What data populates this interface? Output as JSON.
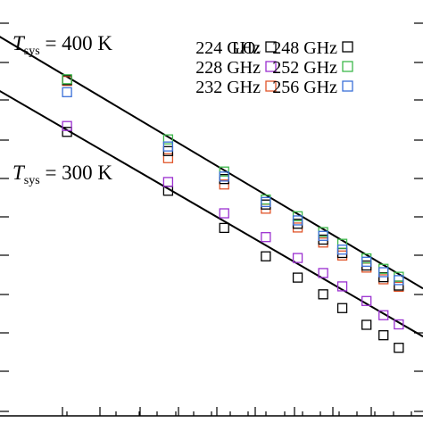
{
  "chart_data": {
    "type": "scatter",
    "title": "",
    "xlabel": "",
    "ylabel": "",
    "xlim": [
      0,
      10
    ],
    "ylim": [
      0,
      10
    ],
    "grid": false,
    "legend_placement": "top-right",
    "legend_prefix": "LO:",
    "series": [
      {
        "name": "224 GHz",
        "color": "#000000",
        "points": [
          [
            1.62,
            6.8
          ],
          [
            4.0,
            5.39
          ],
          [
            5.32,
            4.5
          ],
          [
            6.3,
            3.82
          ],
          [
            7.05,
            3.31
          ],
          [
            7.65,
            2.91
          ],
          [
            8.1,
            2.58
          ],
          [
            8.67,
            2.18
          ],
          [
            9.07,
            1.93
          ],
          [
            9.43,
            1.63
          ]
        ]
      },
      {
        "name": "228 GHz",
        "color": "#9b30d0",
        "points": [
          [
            1.62,
            6.94
          ],
          [
            4.0,
            5.6
          ],
          [
            5.32,
            4.85
          ],
          [
            6.3,
            4.28
          ],
          [
            7.05,
            3.78
          ],
          [
            7.65,
            3.42
          ],
          [
            8.1,
            3.1
          ],
          [
            8.67,
            2.75
          ],
          [
            9.07,
            2.41
          ],
          [
            9.43,
            2.19
          ]
        ]
      },
      {
        "name": "232 GHz",
        "color": "#e0552a",
        "points": [
          [
            1.62,
            8.02
          ],
          [
            4.0,
            6.17
          ],
          [
            5.32,
            5.54
          ],
          [
            6.3,
            4.96
          ],
          [
            7.05,
            4.51
          ],
          [
            7.65,
            4.15
          ],
          [
            8.1,
            3.84
          ],
          [
            8.67,
            3.55
          ],
          [
            9.07,
            3.27
          ],
          [
            9.43,
            3.09
          ]
        ]
      },
      {
        "name": "248 GHz",
        "color": "#000000",
        "points": [
          [
            1.62,
            8.04
          ],
          [
            4.0,
            6.34
          ],
          [
            5.32,
            5.67
          ],
          [
            6.3,
            5.06
          ],
          [
            7.05,
            4.6
          ],
          [
            7.65,
            4.22
          ],
          [
            8.1,
            3.9
          ],
          [
            8.67,
            3.6
          ],
          [
            9.07,
            3.32
          ],
          [
            9.43,
            3.12
          ]
        ]
      },
      {
        "name": "252 GHz",
        "color": "#3db84a",
        "points": [
          [
            1.62,
            8.06
          ],
          [
            4.0,
            6.62
          ],
          [
            5.32,
            5.85
          ],
          [
            6.3,
            5.18
          ],
          [
            7.05,
            4.78
          ],
          [
            7.65,
            4.4
          ],
          [
            8.1,
            4.12
          ],
          [
            8.67,
            3.77
          ],
          [
            9.07,
            3.52
          ],
          [
            9.43,
            3.33
          ]
        ]
      },
      {
        "name": "256 GHz",
        "color": "#3a6fd8",
        "points": [
          [
            1.62,
            7.75
          ],
          [
            4.0,
            6.45
          ],
          [
            5.32,
            5.73
          ],
          [
            6.3,
            5.12
          ],
          [
            7.05,
            4.68
          ],
          [
            7.65,
            4.31
          ],
          [
            8.1,
            3.98
          ],
          [
            8.67,
            3.69
          ],
          [
            9.07,
            3.44
          ],
          [
            9.43,
            3.25
          ]
        ]
      }
    ],
    "lines": [
      {
        "name": "T_sys = 400 K",
        "from": [
          0,
          9.1
        ],
        "to": [
          10,
          3.05
        ]
      },
      {
        "name": "T_sys = 300 K",
        "from": [
          0,
          7.8
        ],
        "to": [
          10,
          1.9
        ]
      }
    ],
    "annotations": [
      {
        "main": "T",
        "sub": "sys",
        "rest": " = 400 K"
      },
      {
        "main": "T",
        "sub": "sys",
        "rest": " = 300 K"
      }
    ]
  }
}
